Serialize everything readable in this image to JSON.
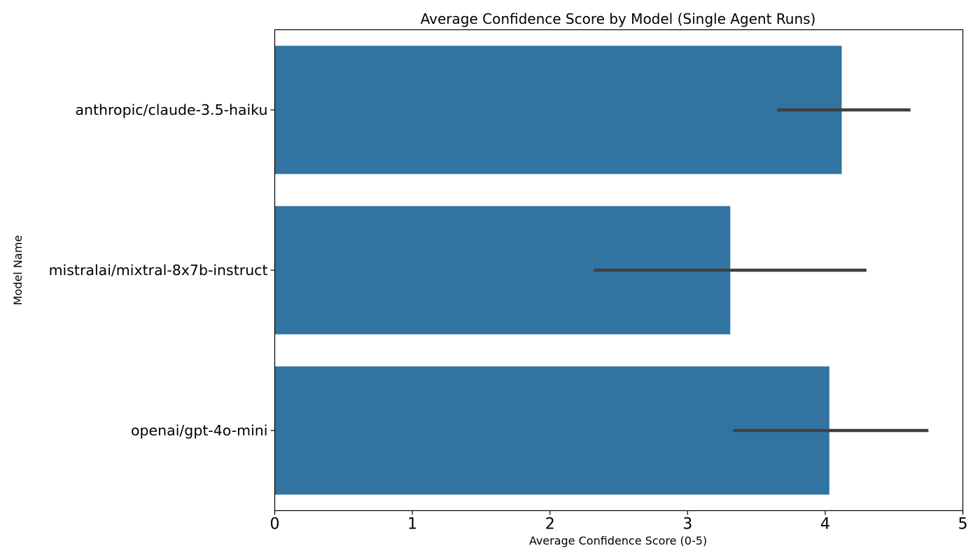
{
  "chart_data": {
    "type": "bar",
    "orientation": "horizontal",
    "title": "Average Confidence Score by Model (Single Agent Runs)",
    "xlabel": "Average Confidence Score (0-5)",
    "ylabel": "Model Name",
    "categories": [
      "anthropic/claude-3.5-haiku",
      "mistralai/mixtral-8x7b-instruct",
      "openai/gpt-4o-mini"
    ],
    "values": [
      4.12,
      3.31,
      4.03
    ],
    "error_bars": [
      {
        "low": 3.65,
        "high": 4.62
      },
      {
        "low": 2.32,
        "high": 4.3
      },
      {
        "low": 3.33,
        "high": 4.75
      }
    ],
    "xlim": [
      0,
      5
    ],
    "xticks": [
      "0",
      "1",
      "2",
      "3",
      "4",
      "5"
    ],
    "grid": false,
    "bar_color": "#3274a1",
    "error_bar_color": "#404040"
  }
}
